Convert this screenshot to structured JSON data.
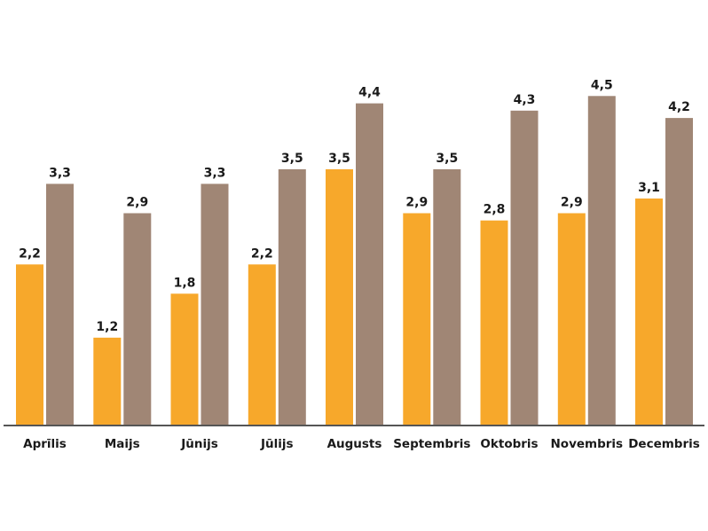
{
  "chart_data": {
    "type": "bar",
    "categories": [
      "Aprīlis",
      "Maijs",
      "Jūnijs",
      "Jūlijs",
      "Augusts",
      "Septembris",
      "Oktobris",
      "Novembris",
      "Decembris"
    ],
    "series": [
      {
        "color": "#F7A82B",
        "values": [
          2.2,
          1.2,
          1.8,
          2.2,
          3.5,
          2.9,
          2.8,
          2.9,
          3.1
        ],
        "labels": [
          "2,2",
          "1,2",
          "1,8",
          "2,2",
          "3,5",
          "2,9",
          "2,8",
          "2,9",
          "3,1"
        ]
      },
      {
        "color": "#A08675",
        "values": [
          3.3,
          2.9,
          3.3,
          3.5,
          4.4,
          3.5,
          4.3,
          4.5,
          4.2
        ],
        "labels": [
          "3,3",
          "2,9",
          "3,3",
          "3,5",
          "4,4",
          "3,5",
          "4,3",
          "4,5",
          "4,2"
        ]
      }
    ],
    "ylim": [
      0,
      4.5
    ],
    "grid": false,
    "legend": "none",
    "title": "",
    "xlabel": "",
    "ylabel": "",
    "axis_color": "#555555"
  }
}
